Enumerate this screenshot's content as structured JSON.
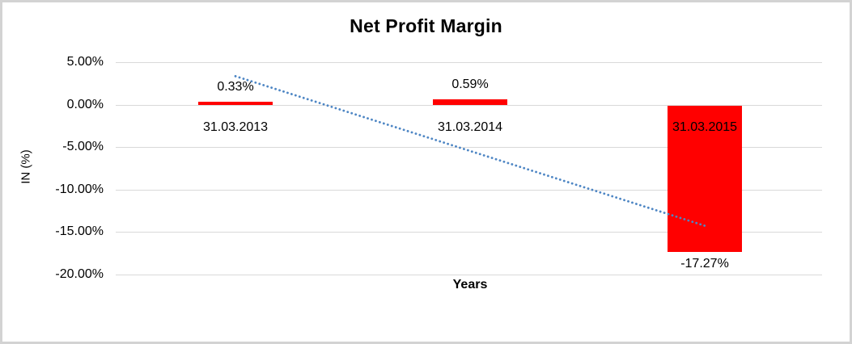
{
  "chart_data": {
    "type": "bar",
    "title": "Net Profit Margin",
    "xlabel": "Years",
    "ylabel": "IN (%)",
    "categories": [
      "31.03.2013",
      "31.03.2014",
      "31.03.2015"
    ],
    "values": [
      0.33,
      0.59,
      -17.27
    ],
    "data_labels": [
      "0.33%",
      "0.59%",
      "-17.27%"
    ],
    "y_ticks": [
      {
        "label": "5.00%",
        "value": 5
      },
      {
        "label": "0.00%",
        "value": 0
      },
      {
        "label": "-5.00%",
        "value": -5
      },
      {
        "label": "-10.00%",
        "value": -10
      },
      {
        "label": "-15.00%",
        "value": -15
      },
      {
        "label": "-20.00%",
        "value": -20
      }
    ],
    "ylim": [
      -20,
      5
    ],
    "grid": true,
    "legend": false,
    "bar_color": "#ff0000",
    "trendline": {
      "type": "linear",
      "style": "dotted",
      "color": "#4e86c4",
      "start_value": 3.35,
      "end_value": -14.25
    }
  },
  "colors": {
    "canvas_border": "#d3d3d3",
    "gridline": "#d9d9d9",
    "text": "#000000"
  }
}
